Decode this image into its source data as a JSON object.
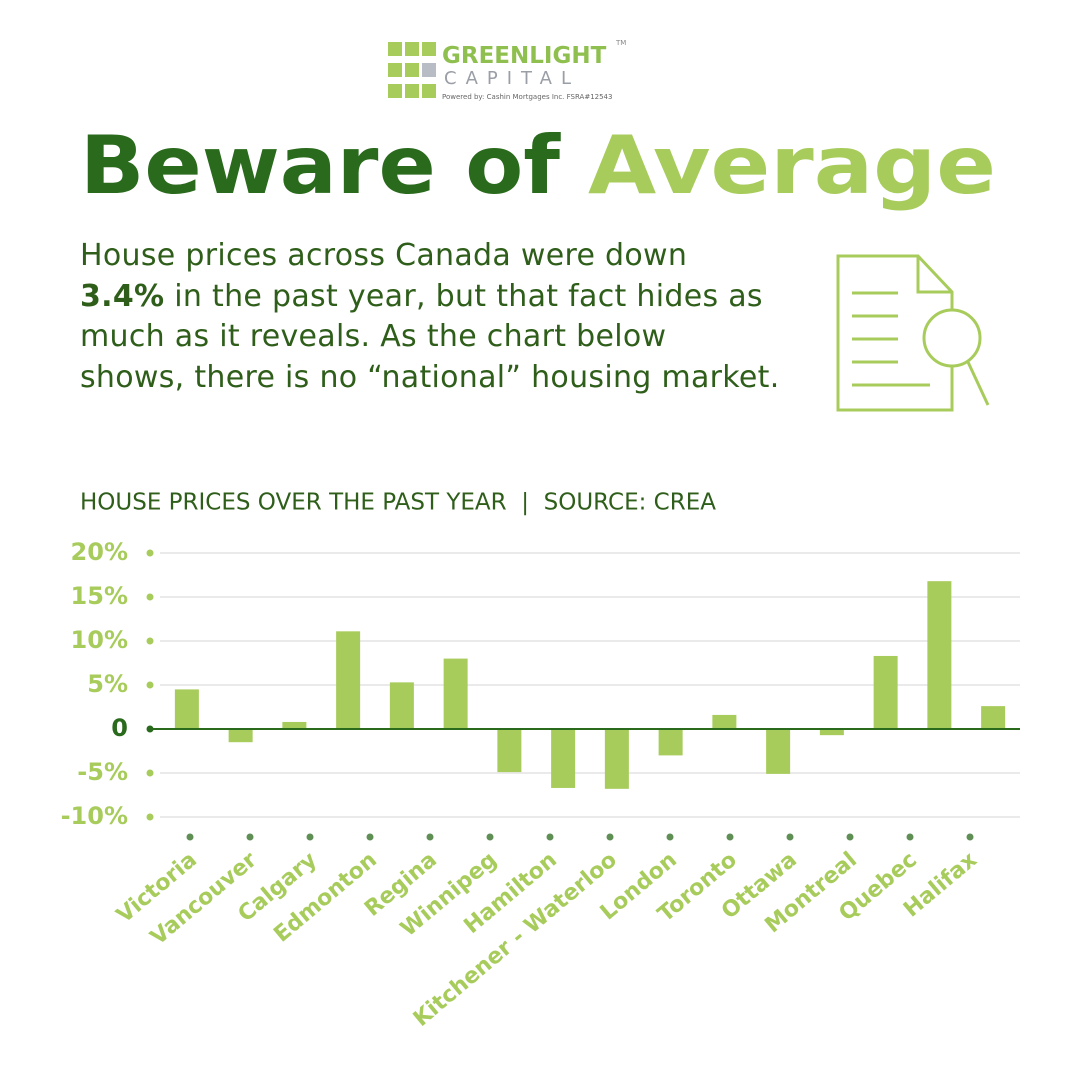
{
  "header": {
    "brand": "GREENLIGHT",
    "brand_sub": "CAPITAL",
    "trademark": "TM",
    "powered_by": "Powered by:  Cashin Mortgages Inc.  FSRA#12543"
  },
  "headline": {
    "part1": "Beware of",
    "part2": "Average"
  },
  "body": {
    "before": "House prices across Canada were down ",
    "highlight": "3.4%",
    "after": " in the past year, but that fact hides as much as it reveals. As the chart below shows, there is no “national” housing market."
  },
  "chart_data": {
    "type": "bar",
    "title": "HOUSE PRICES OVER THE PAST YEAR  |  SOURCE: CREA",
    "categories": [
      "Victoria",
      "Vancouver",
      "Calgary",
      "Edmonton",
      "Regina",
      "Winnipeg",
      null,
      "Hamilton",
      "Kitchener - Waterloo",
      "London",
      "Toronto",
      "Ottawa",
      null,
      "Montreal",
      "Quebec",
      "Halifax"
    ],
    "values": [
      4.5,
      -1.5,
      0.8,
      11.1,
      5.3,
      8.0,
      -4.9,
      -6.7,
      -6.8,
      -3.0,
      1.6,
      -5.1,
      -0.7,
      8.3,
      16.8,
      2.6
    ],
    "color": "#a8cc5c",
    "ylim": [
      -10,
      20
    ],
    "yticks": [
      {
        "value": -10,
        "label": "-10%"
      },
      {
        "value": -5,
        "label": "-5%"
      },
      0,
      {
        "value": 5,
        "label": "5%"
      },
      {
        "value": 10,
        "label": "10%"
      },
      {
        "value": 15,
        "label": "15%"
      },
      {
        "value": 20,
        "label": "20%"
      }
    ],
    "grid": true
  }
}
